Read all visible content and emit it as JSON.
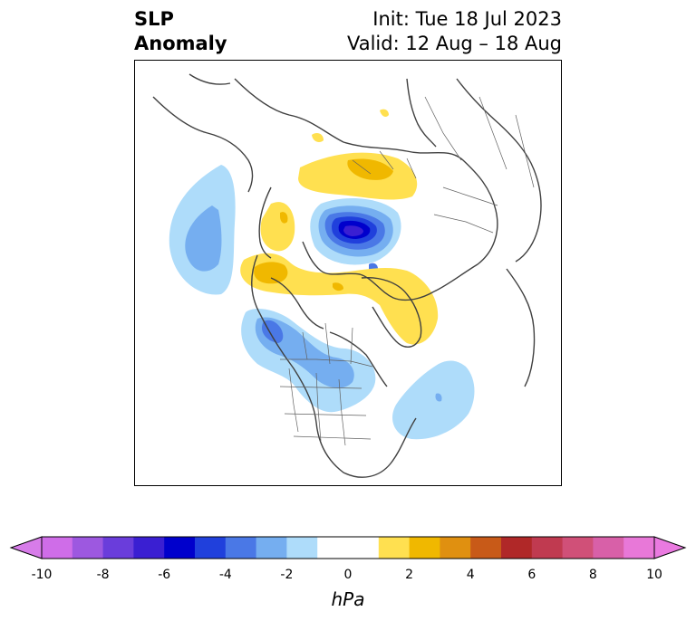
{
  "title": {
    "left_line1": "SLP",
    "left_line2": "Anomaly",
    "right_line1": "Init: Tue 18 Jul 2023",
    "right_line2": "Valid: 12 Aug – 18 Aug"
  },
  "colorbar": {
    "unit": "hPa",
    "ticks": [
      "-10",
      "-8",
      "-6",
      "-4",
      "-2",
      "0",
      "2",
      "4",
      "6",
      "8",
      "10"
    ],
    "colors": [
      "#cf6de8",
      "#9d58e0",
      "#6a3ddb",
      "#3a1fd2",
      "#0000cc",
      "#2040dc",
      "#4a78e6",
      "#75aef0",
      "#aedcfa",
      "#ffffff",
      "#ffffff",
      "#ffe050",
      "#f0b800",
      "#e09010",
      "#c85a18",
      "#b02828",
      "#c03a50",
      "#d05078",
      "#d860a8",
      "#e878d8"
    ],
    "extend_min_color": "#d77ce9",
    "extend_max_color": "#ea7ae0"
  }
}
